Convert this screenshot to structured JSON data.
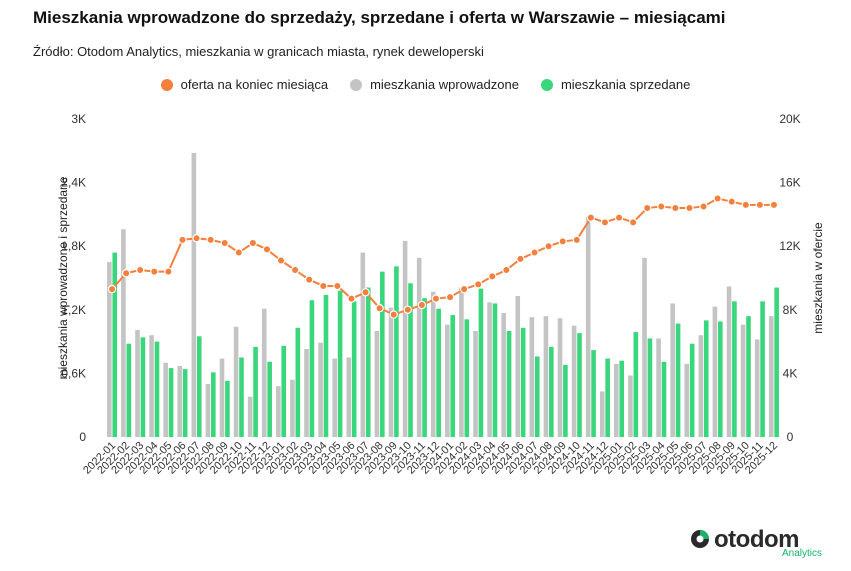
{
  "title": "Mieszkania wprowadzone do sprzedaży, sprzedane i oferta w Warszawie – miesiącami",
  "subtitle": "Źródło: Otodom Analytics, mieszkania w granicach miasta, rynek deweloperski",
  "colors": {
    "offer": "#f57f3d",
    "introduced": "#c4c4c4",
    "sold": "#3ad67c",
    "grid": "#e6e6e6",
    "axis_text": "#333333"
  },
  "legend": [
    {
      "label": "oferta na koniec miesiąca",
      "color": "#f57f3d"
    },
    {
      "label": "mieszkania wprowadzone",
      "color": "#c4c4c4"
    },
    {
      "label": "mieszkania sprzedane",
      "color": "#3ad67c"
    }
  ],
  "logo": {
    "word": "otodom",
    "sub": "Analytics"
  },
  "chart_data": {
    "type": "bar",
    "title": "Mieszkania wprowadzone do sprzedaży, sprzedane i oferta w Warszawie – miesiącami",
    "ylabel": "mieszkania wprowadzone i sprzedane",
    "y2label": "mieszkania w ofercie",
    "ylim": [
      0,
      3000
    ],
    "y2lim": [
      0,
      20000
    ],
    "yticks": [
      "0",
      "0,6K",
      "1,2K",
      "1,8K",
      "2,4K",
      "3K"
    ],
    "y2ticks": [
      "0",
      "4K",
      "8K",
      "12K",
      "16K",
      "20K"
    ],
    "legend_position": "top-center",
    "grid": false,
    "categories": [
      "2022-01",
      "2022-02",
      "2022-03",
      "2022-04",
      "2022-05",
      "2022-06",
      "2022-07",
      "2022-08",
      "2022-09",
      "2022-10",
      "2022-11",
      "2022-12",
      "2023-01",
      "2023-02",
      "2023-03",
      "2023-04",
      "2023-05",
      "2023-06",
      "2023-07",
      "2023-08",
      "2023-09",
      "2023-10",
      "2023-11",
      "2023-12",
      "2024-01",
      "2024-02",
      "2024-03",
      "2024-04",
      "2024-05",
      "2024-06",
      "2024-07",
      "2024-08",
      "2024-09",
      "2024-10",
      "2024-11",
      "2024-12",
      "2025-01",
      "2025-02",
      "2025-03",
      "2025-04",
      "2025-05",
      "2025-06",
      "2025-07",
      "2025-08",
      "2025-09",
      "2025-10",
      "2025-11",
      "2025-12"
    ],
    "series": [
      {
        "name": "mieszkania wprowadzone",
        "type": "bar",
        "axis": "left",
        "values": [
          1650,
          1960,
          1010,
          960,
          700,
          670,
          2680,
          500,
          740,
          1040,
          380,
          1210,
          480,
          540,
          830,
          890,
          740,
          750,
          1740,
          1000,
          1220,
          1850,
          1690,
          1370,
          1060,
          1410,
          1000,
          1270,
          1170,
          1330,
          1130,
          1140,
          1120,
          1050,
          2080,
          430,
          690,
          580,
          1690,
          930,
          1260,
          690,
          960,
          1230,
          1420,
          1060,
          920,
          1140
        ]
      },
      {
        "name": "mieszkania sprzedane",
        "type": "bar",
        "axis": "left",
        "values": [
          1740,
          880,
          940,
          900,
          650,
          640,
          950,
          610,
          530,
          750,
          850,
          710,
          860,
          1030,
          1290,
          1340,
          1380,
          1280,
          1410,
          1560,
          1610,
          1450,
          1310,
          1210,
          1150,
          1110,
          1400,
          1260,
          1000,
          1030,
          760,
          850,
          680,
          980,
          820,
          740,
          720,
          990,
          930,
          710,
          1070,
          880,
          1100,
          1090,
          1280,
          1140,
          1280,
          1410
        ]
      },
      {
        "name": "oferta na koniec miesiąca",
        "type": "line",
        "axis": "right",
        "values": [
          9300,
          10300,
          10500,
          10400,
          10400,
          12400,
          12500,
          12400,
          12200,
          11600,
          12200,
          11800,
          11100,
          10500,
          9900,
          9500,
          9500,
          8700,
          9100,
          8100,
          7700,
          8000,
          8300,
          8700,
          8800,
          9300,
          9600,
          10100,
          10500,
          11200,
          11600,
          12000,
          12300,
          12400,
          13800,
          13500,
          13800,
          13500,
          14400,
          14500,
          14400,
          14400,
          14500,
          15000,
          14800,
          14600,
          14600,
          14600
        ]
      }
    ]
  }
}
